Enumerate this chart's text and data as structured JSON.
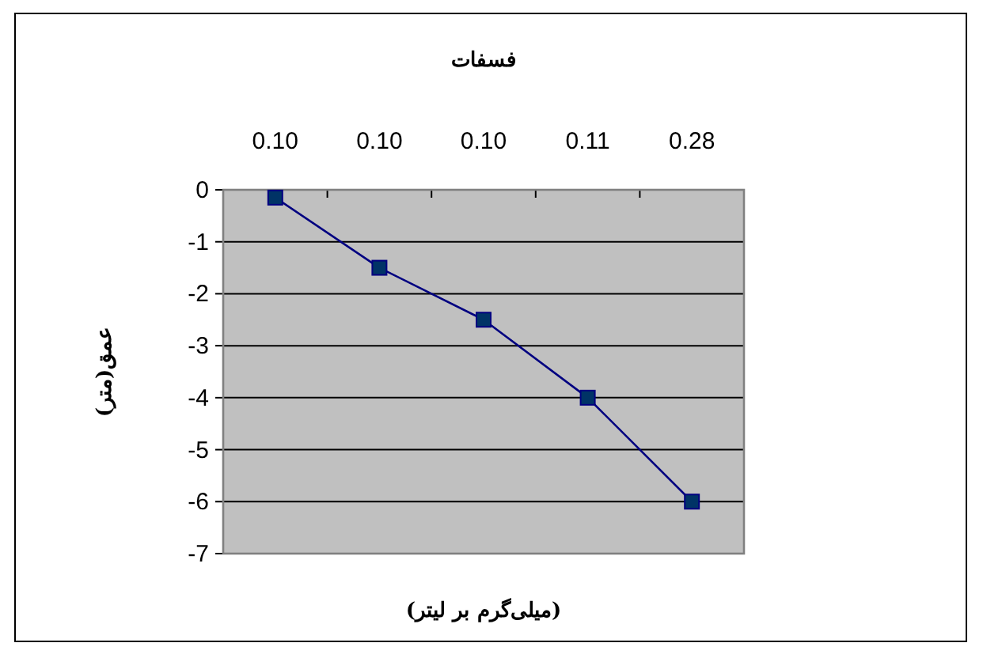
{
  "chart_data": {
    "type": "line",
    "title": "فسفات",
    "xlabel": "(میلی‌گرم بر لیتر)",
    "ylabel": "عمق(متر)",
    "categories": [
      "0.10",
      "0.10",
      "0.10",
      "0.11",
      "0.28"
    ],
    "values": [
      -0.15,
      -1.5,
      -2.5,
      -4,
      -6
    ],
    "color": "#000080",
    "marker": "square",
    "line_style": "solid",
    "grid": "y",
    "ylim": [
      -7,
      0
    ],
    "yticks": [
      -7,
      -6,
      -5,
      -4,
      -3,
      -2,
      -1,
      0
    ]
  }
}
